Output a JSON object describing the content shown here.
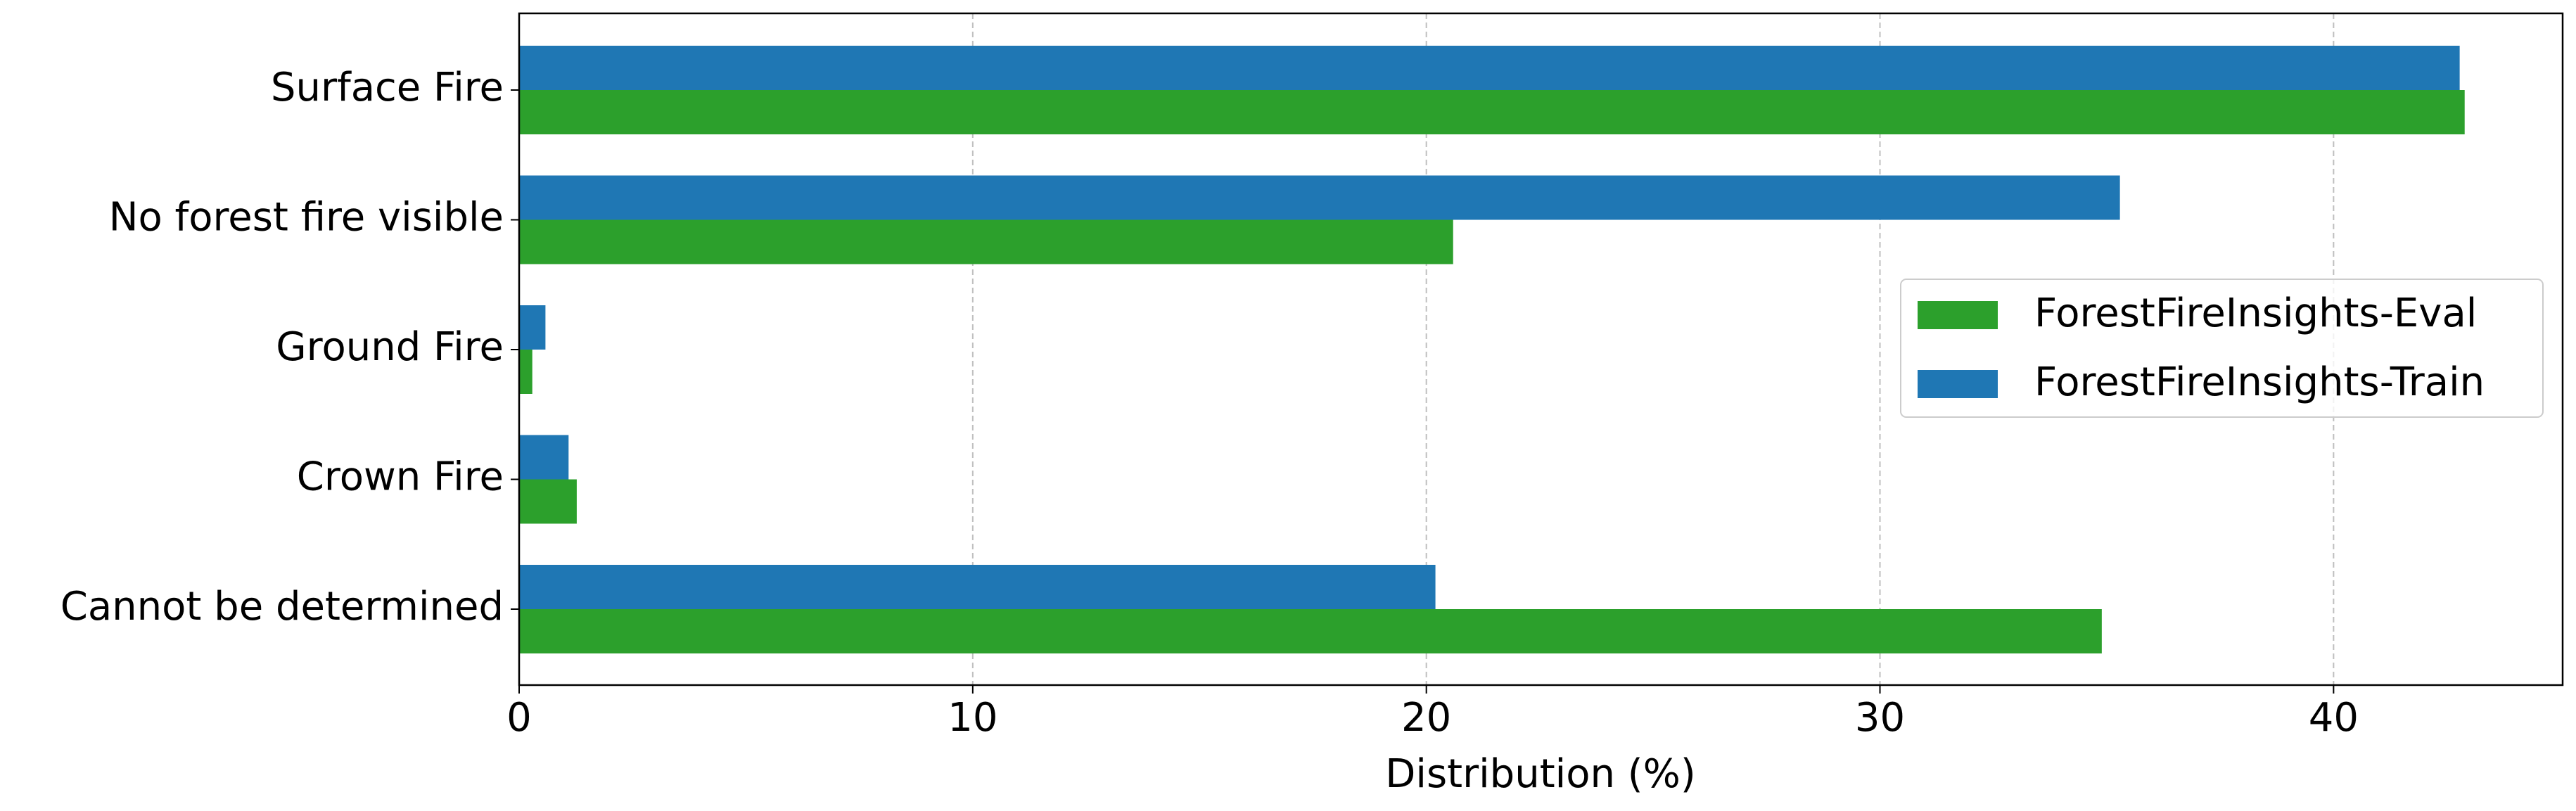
{
  "chart_data": {
    "type": "barh",
    "categories": [
      "Surface Fire",
      "No forest fire visible",
      "Ground Fire",
      "Crown Fire",
      "Cannot be determined"
    ],
    "series": [
      {
        "name": "ForestFireInsights-Eval",
        "color": "#2ca02c",
        "values": [
          42.89,
          20.59,
          0.29,
          1.27,
          34.89
        ]
      },
      {
        "name": "ForestFireInsights-Train",
        "color": "#1f77b4",
        "values": [
          42.78,
          35.29,
          0.58,
          1.09,
          20.2
        ]
      }
    ],
    "xlabel": "Distribution (%)",
    "xlim": [
      0,
      45.05
    ],
    "xticks": [
      0,
      10,
      20,
      30,
      40
    ],
    "grid": true,
    "legend": "right"
  }
}
